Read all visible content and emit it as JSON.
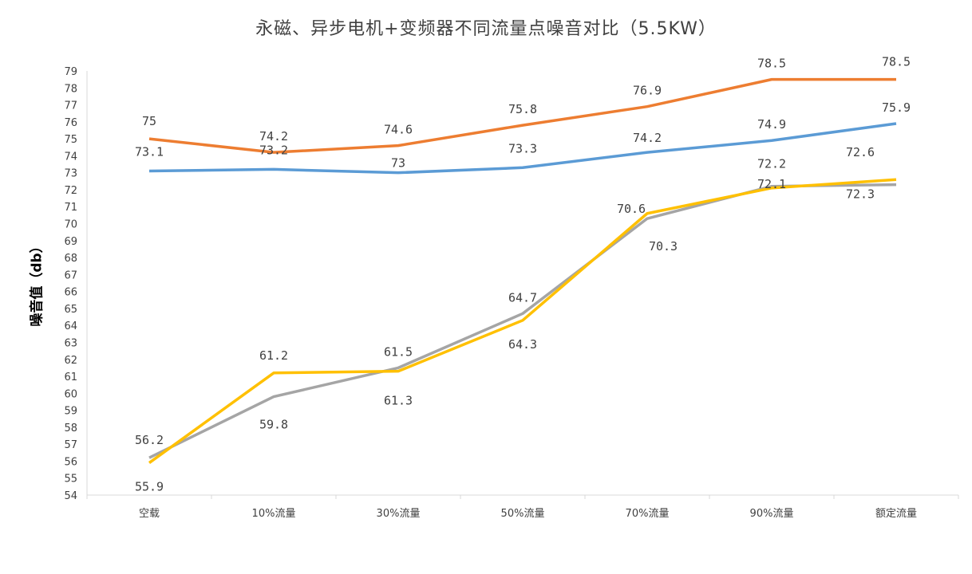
{
  "chart_data": {
    "type": "line",
    "title": "永磁、异步电机+变频器不同流量点噪音对比（5.5KW）",
    "xlabel": "",
    "ylabel": "噪音值（db）",
    "categories": [
      "空载",
      "10%流量",
      "30%流量",
      "50%流量",
      "70%流量",
      "90%流量",
      "额定流量"
    ],
    "ylim": [
      54,
      79
    ],
    "yticks": [
      54,
      55,
      56,
      57,
      58,
      59,
      60,
      61,
      62,
      63,
      64,
      65,
      66,
      67,
      68,
      69,
      70,
      71,
      72,
      73,
      74,
      75,
      76,
      77,
      78,
      79
    ],
    "grid": false,
    "legend": "none",
    "series": [
      {
        "color": "#ED7D31",
        "values": [
          75,
          74.2,
          74.6,
          75.8,
          76.9,
          78.5,
          78.5
        ]
      },
      {
        "color": "#5B9BD5",
        "values": [
          73.1,
          73.2,
          73,
          73.3,
          74.2,
          74.9,
          75.9
        ]
      },
      {
        "color": "#A5A5A5",
        "values": [
          56.2,
          59.8,
          61.5,
          64.7,
          70.3,
          72.2,
          72.3
        ]
      },
      {
        "color": "#FFC000",
        "values": [
          55.9,
          61.2,
          61.3,
          64.3,
          70.6,
          72.1,
          72.6
        ]
      }
    ]
  }
}
